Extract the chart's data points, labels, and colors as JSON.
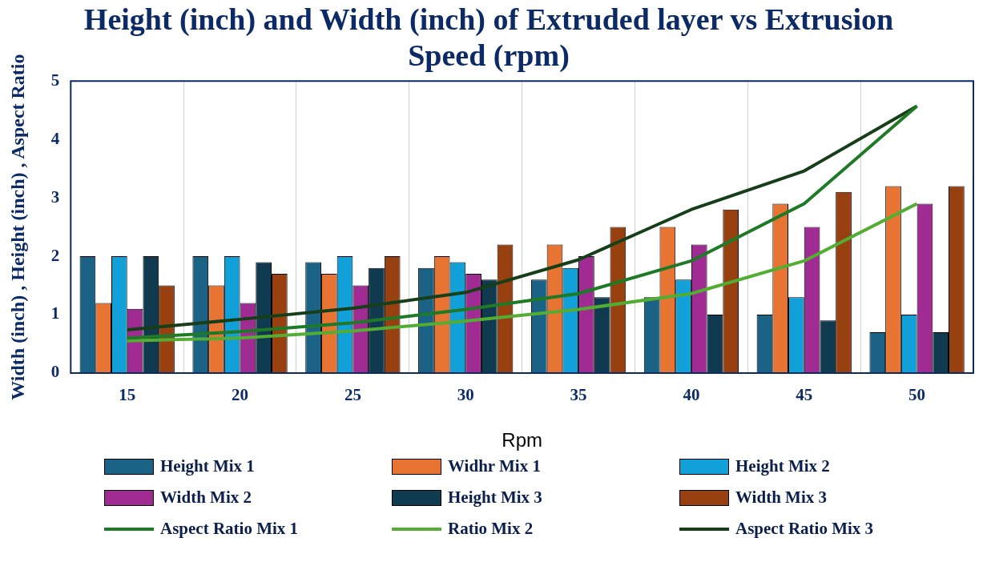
{
  "chart_data": {
    "type": "bar",
    "title": "Height (inch) and Width (inch) of Extruded layer vs Extrusion Speed (rpm)",
    "xlabel": "Rpm",
    "ylabel": "Width (inch) , Height (inch) , Aspect Ratio",
    "categories": [
      "15",
      "20",
      "25",
      "30",
      "35",
      "40",
      "45",
      "50"
    ],
    "series": [
      {
        "name": "Height Mix 1",
        "color": "#1a6387",
        "values": [
          2.0,
          2.0,
          1.9,
          1.8,
          1.6,
          1.3,
          1.0,
          0.7
        ]
      },
      {
        "name": "Widhr Mix 1",
        "color": "#e87433",
        "values": [
          1.2,
          1.5,
          1.7,
          2.0,
          2.2,
          2.5,
          2.9,
          3.2
        ]
      },
      {
        "name": "Height Mix 2",
        "color": "#12a0d8",
        "values": [
          2.0,
          2.0,
          2.0,
          1.9,
          1.8,
          1.6,
          1.3,
          1.0
        ]
      },
      {
        "name": "Width Mix 2",
        "color": "#a02b93",
        "values": [
          1.1,
          1.2,
          1.5,
          1.7,
          2.0,
          2.2,
          2.5,
          2.9
        ]
      },
      {
        "name": "Height Mix 3",
        "color": "#0f3a4f",
        "values": [
          2.0,
          1.9,
          1.8,
          1.6,
          1.3,
          1.0,
          0.9,
          0.7
        ]
      },
      {
        "name": "Width Mix 3",
        "color": "#994010",
        "values": [
          1.5,
          1.7,
          2.0,
          2.2,
          2.5,
          2.8,
          3.1,
          3.2
        ]
      },
      {
        "name": "Aspect Ratio Mix 1",
        "type": "line",
        "color": "#1f7a27",
        "values": [
          0.6,
          0.71,
          0.86,
          1.09,
          1.36,
          1.92,
          2.9,
          4.57
        ]
      },
      {
        "name": "Ratio Mix 2",
        "type": "line",
        "color": "#52ad32",
        "values": [
          0.55,
          0.6,
          0.72,
          0.89,
          1.09,
          1.36,
          1.92,
          2.9
        ]
      },
      {
        "name": "Aspect Ratio Mix 3",
        "type": "line",
        "color": "#163f19",
        "values": [
          0.74,
          0.92,
          1.11,
          1.38,
          1.94,
          2.8,
          3.46,
          4.57
        ]
      }
    ],
    "ylim": [
      0,
      5
    ],
    "yticks": [
      0,
      1,
      2,
      3,
      4,
      5
    ],
    "grid": "x",
    "legend": "bottom",
    "marker": "none",
    "line_style": "solid"
  }
}
